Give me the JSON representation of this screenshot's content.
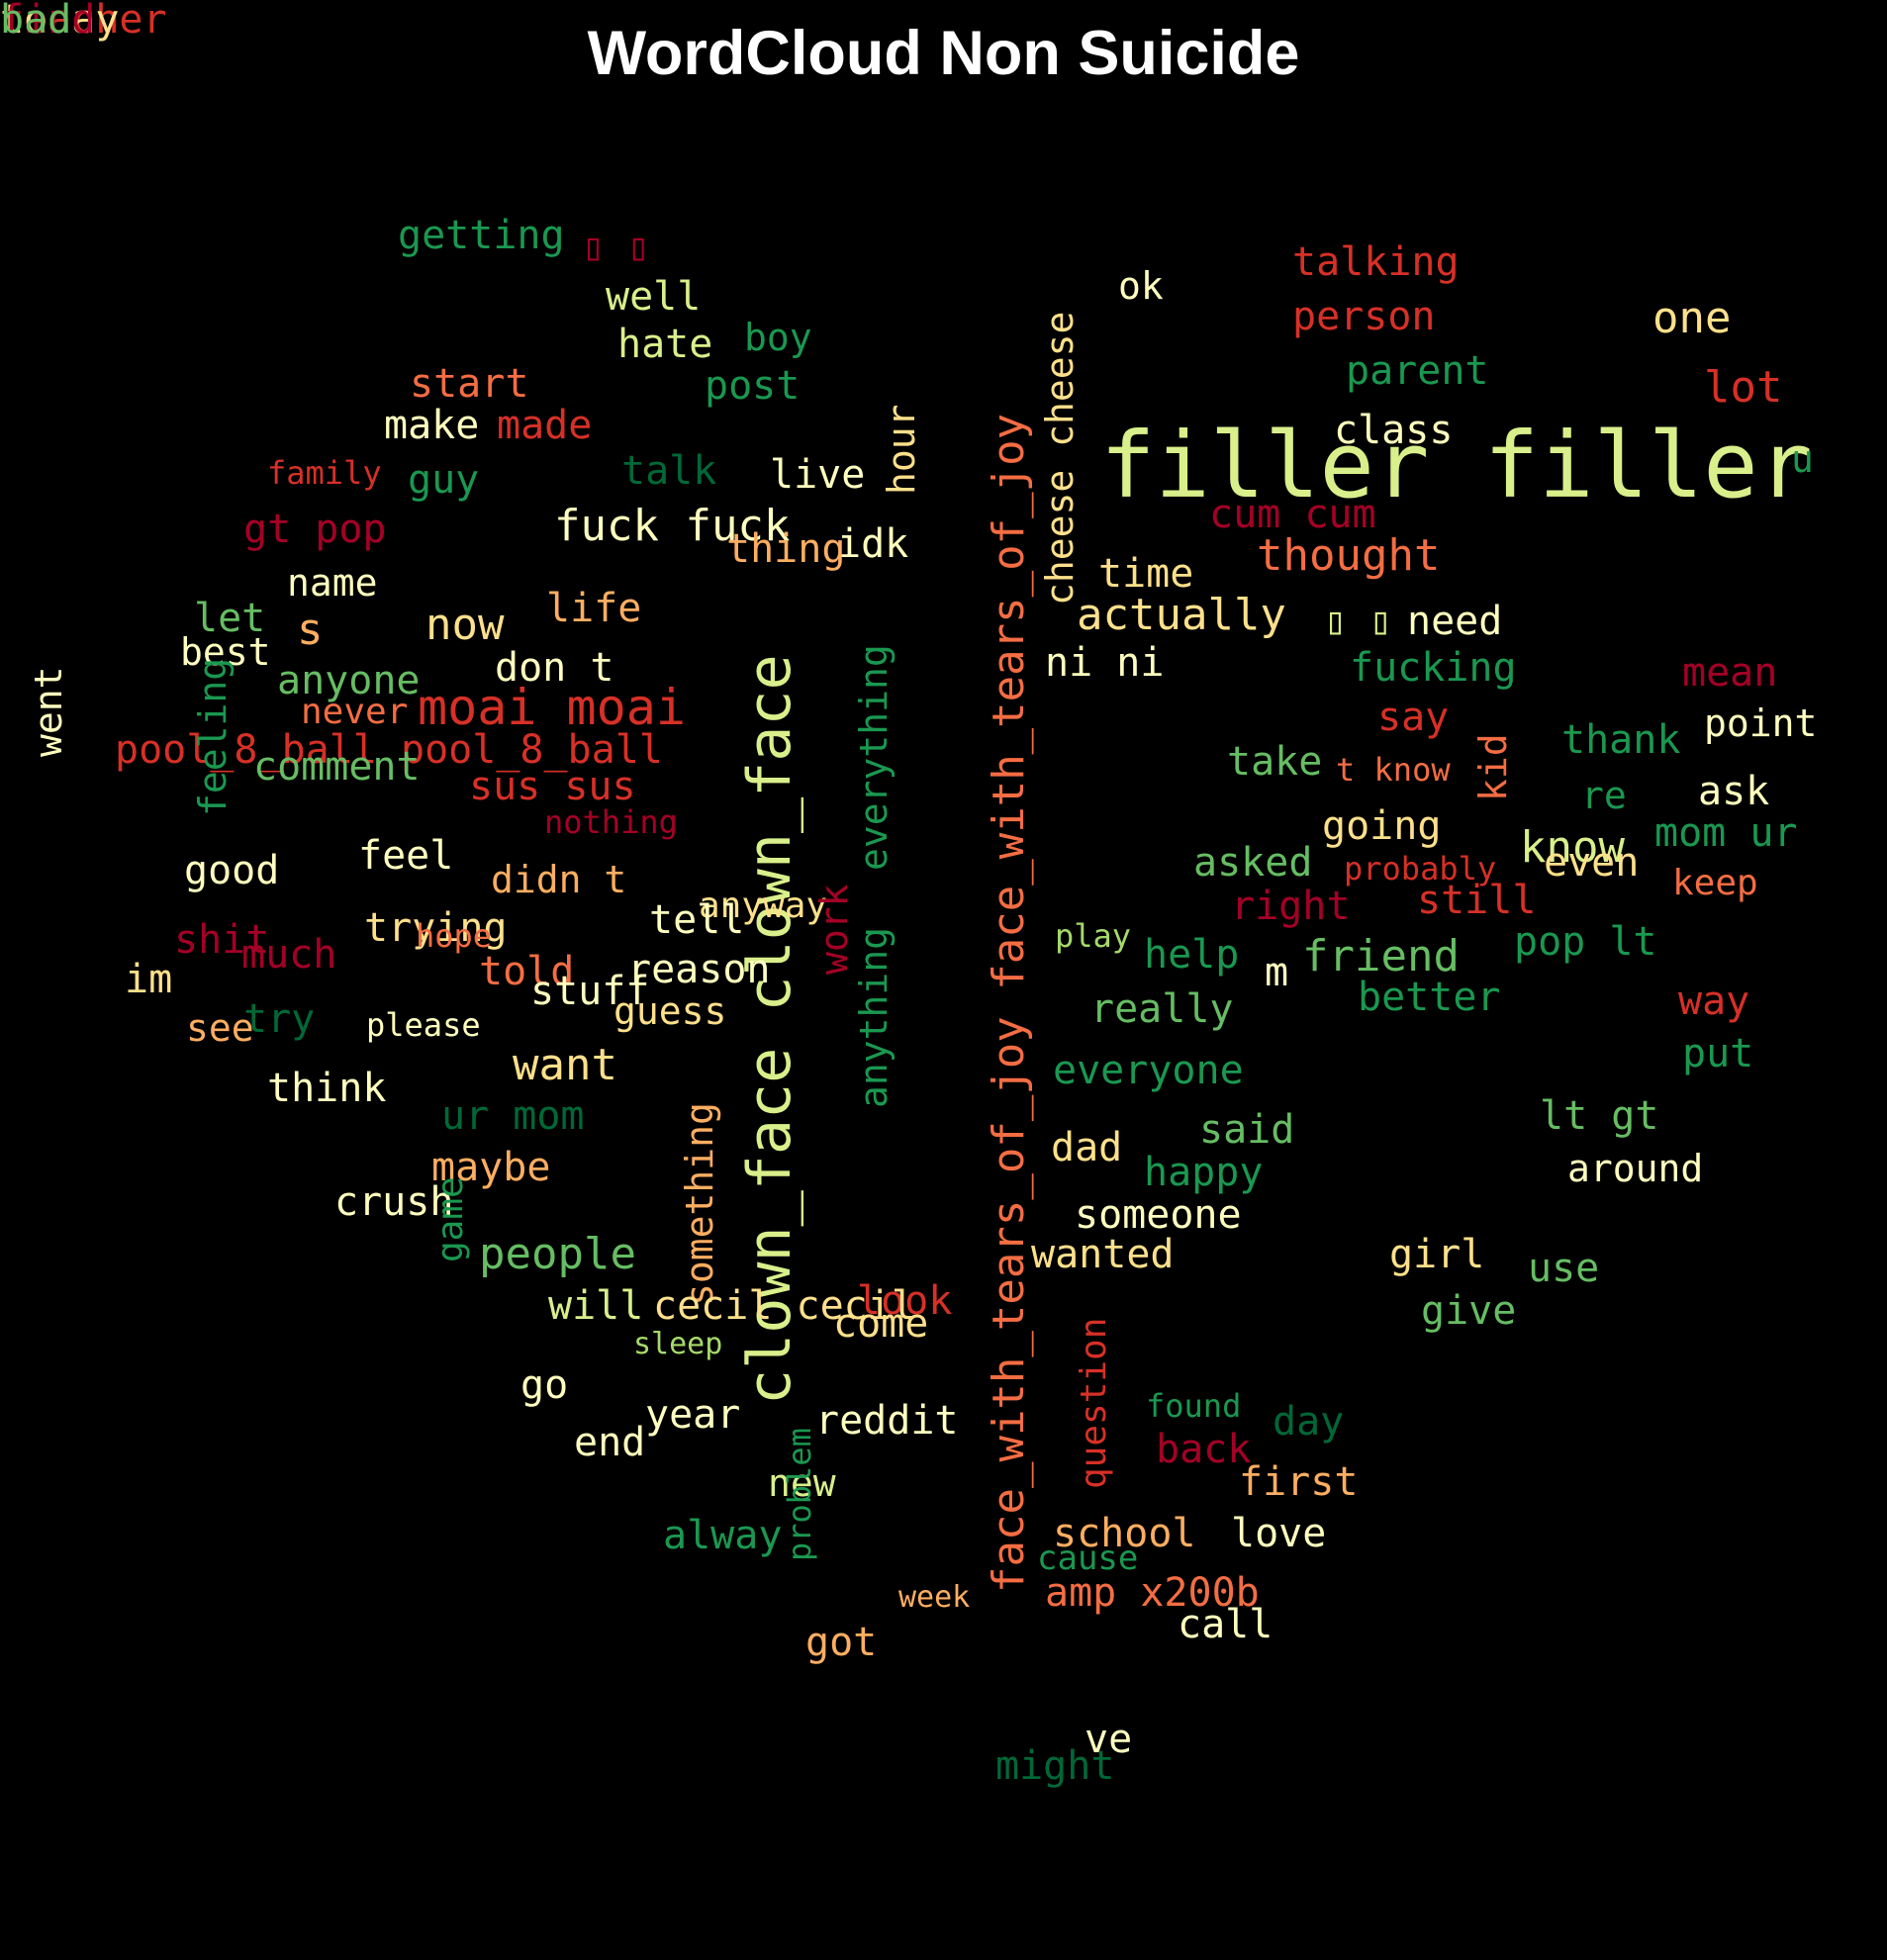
{
  "title": "WordCloud Non Suicide",
  "colors": {
    "background": "#000000",
    "title": "#ffffff",
    "palette": [
      "#a50026",
      "#d73027",
      "#f46d43",
      "#fdae61",
      "#fee08b",
      "#ffffbf",
      "#d9ef8b",
      "#a6d96a",
      "#66bd63",
      "#1a9850",
      "#006837"
    ]
  },
  "words": [
    {
      "t": "filler filler",
      "c": "#d9ef8b",
      "s": 92
    },
    {
      "t": "clown_face clown_face",
      "c": "#d9ef8b",
      "s": 60,
      "v": true
    },
    {
      "t": "face_with_tears_of_joy face_with_tears_of_joy",
      "c": "#f46d43",
      "s": 44,
      "v": true
    },
    {
      "t": "cheese cheese",
      "c": "#fee08b",
      "s": 38,
      "v": true
    },
    {
      "t": "moai moai",
      "c": "#d73027",
      "s": 50
    },
    {
      "t": "pool_8_ball pool_8_ball",
      "c": "#d73027",
      "s": 40
    },
    {
      "t": "everything",
      "c": "#1a9850",
      "s": 38,
      "v": true
    },
    {
      "t": "anything",
      "c": "#1a9850",
      "s": 38,
      "v": true
    },
    {
      "t": "something",
      "c": "#fdae61",
      "s": 38,
      "v": true
    },
    {
      "t": "went",
      "c": "#ffffbf",
      "s": 38,
      "v": true
    },
    {
      "t": "fuck fuck",
      "c": "#ffffbf",
      "s": 44
    },
    {
      "t": "talking",
      "c": "#d73027",
      "s": 40
    },
    {
      "t": "person",
      "c": "#d73027",
      "s": 40
    },
    {
      "t": "one",
      "c": "#fee08b",
      "s": 44
    },
    {
      "t": "parent",
      "c": "#1a9850",
      "s": 40
    },
    {
      "t": "lot",
      "c": "#d73027",
      "s": 44
    },
    {
      "t": "class",
      "c": "#ffffbf",
      "s": 40
    },
    {
      "t": "u",
      "c": "#1a9850",
      "s": 38
    },
    {
      "t": "cum cum",
      "c": "#a50026",
      "s": 40
    },
    {
      "t": "thought",
      "c": "#f46d43",
      "s": 44
    },
    {
      "t": "time",
      "c": "#fee08b",
      "s": 40
    },
    {
      "t": "actually",
      "c": "#fee08b",
      "s": 44
    },
    {
      "t": "need",
      "c": "#ffffbf",
      "s": 40
    },
    {
      "t": "fucking",
      "c": "#1a9850",
      "s": 40
    },
    {
      "t": "mean",
      "c": "#a50026",
      "s": 40
    },
    {
      "t": "ni ni",
      "c": "#ffffbf",
      "s": 40
    },
    {
      "t": "say",
      "c": "#d73027",
      "s": 40
    },
    {
      "t": "thank",
      "c": "#1a9850",
      "s": 40
    },
    {
      "t": "point",
      "c": "#ffffbf",
      "s": 38
    },
    {
      "t": "take",
      "c": "#66bd63",
      "s": 40
    },
    {
      "t": "t know",
      "c": "#f46d43",
      "s": 32
    },
    {
      "t": "kid",
      "c": "#f46d43",
      "s": 38,
      "v": true
    },
    {
      "t": "re",
      "c": "#1a9850",
      "s": 38
    },
    {
      "t": "ask",
      "c": "#ffffbf",
      "s": 40
    },
    {
      "t": "going",
      "c": "#fee08b",
      "s": 40
    },
    {
      "t": "know",
      "c": "#d9ef8b",
      "s": 44
    },
    {
      "t": "mom ur",
      "c": "#1a9850",
      "s": 40
    },
    {
      "t": "asked",
      "c": "#66bd63",
      "s": 40
    },
    {
      "t": "probably",
      "c": "#d73027",
      "s": 32
    },
    {
      "t": "even",
      "c": "#fee08b",
      "s": 40
    },
    {
      "t": "keep",
      "c": "#f46d43",
      "s": 36
    },
    {
      "t": "right",
      "c": "#a50026",
      "s": 40
    },
    {
      "t": "still",
      "c": "#d73027",
      "s": 40
    },
    {
      "t": "play",
      "c": "#a6d96a",
      "s": 32
    },
    {
      "t": "help",
      "c": "#1a9850",
      "s": 40
    },
    {
      "t": "m",
      "c": "#ffffbf",
      "s": 40
    },
    {
      "t": "friend",
      "c": "#66bd63",
      "s": 44
    },
    {
      "t": "pop lt",
      "c": "#1a9850",
      "s": 40
    },
    {
      "t": "better",
      "c": "#1a9850",
      "s": 40
    },
    {
      "t": "way",
      "c": "#d73027",
      "s": 40
    },
    {
      "t": "really",
      "c": "#66bd63",
      "s": 40
    },
    {
      "t": "put",
      "c": "#1a9850",
      "s": 40
    },
    {
      "t": "everyone",
      "c": "#1a9850",
      "s": 40
    },
    {
      "t": "lt gt",
      "c": "#66bd63",
      "s": 40
    },
    {
      "t": "said",
      "c": "#66bd63",
      "s": 40
    },
    {
      "t": "dad",
      "c": "#fee08b",
      "s": 40
    },
    {
      "t": "happy",
      "c": "#1a9850",
      "s": 40
    },
    {
      "t": "around",
      "c": "#ffffbf",
      "s": 38
    },
    {
      "t": "someone",
      "c": "#ffffbf",
      "s": 40
    },
    {
      "t": "wanted",
      "c": "#fee08b",
      "s": 40
    },
    {
      "t": "girl",
      "c": "#fee08b",
      "s": 40
    },
    {
      "t": "use",
      "c": "#66bd63",
      "s": 40
    },
    {
      "t": "question",
      "c": "#d73027",
      "s": 36,
      "v": true
    },
    {
      "t": "give",
      "c": "#66bd63",
      "s": 40
    },
    {
      "t": "found",
      "c": "#1a9850",
      "s": 32
    },
    {
      "t": "day",
      "c": "#006837",
      "s": 40
    },
    {
      "t": "back",
      "c": "#a50026",
      "s": 40
    },
    {
      "t": "first",
      "c": "#fdae61",
      "s": 40
    },
    {
      "t": "school",
      "c": "#fdae61",
      "s": 40
    },
    {
      "t": "love",
      "c": "#ffffbf",
      "s": 40
    },
    {
      "t": "cause",
      "c": "#1a9850",
      "s": 34
    },
    {
      "t": "amp x200b",
      "c": "#f46d43",
      "s": 40
    },
    {
      "t": "call",
      "c": "#ffffbf",
      "s": 40
    },
    {
      "t": "ve",
      "c": "#ffffbf",
      "s": 40
    },
    {
      "t": "might",
      "c": "#006837",
      "s": 40
    },
    {
      "t": "ok",
      "c": "#ffffbf",
      "s": 38
    },
    {
      "t": "getting",
      "c": "#1a9850",
      "s": 40
    },
    {
      "t": "▯ ▯",
      "c": "#a50026",
      "s": 38
    },
    {
      "t": "▯ ▯",
      "c": "#d9ef8b",
      "s": 38
    },
    {
      "t": "well",
      "c": "#d9ef8b",
      "s": 40
    },
    {
      "t": "hate",
      "c": "#d9ef8b",
      "s": 40
    },
    {
      "t": "boy",
      "c": "#1a9850",
      "s": 38
    },
    {
      "t": "start",
      "c": "#f46d43",
      "s": 40
    },
    {
      "t": "post",
      "c": "#1a9850",
      "s": 40
    },
    {
      "t": "made",
      "c": "#d73027",
      "s": 40
    },
    {
      "t": "make",
      "c": "#ffffbf",
      "s": 40
    },
    {
      "t": "hour",
      "c": "#fee08b",
      "s": 38,
      "v": true
    },
    {
      "t": "family",
      "c": "#d73027",
      "s": 32
    },
    {
      "t": "guy",
      "c": "#1a9850",
      "s": 40
    },
    {
      "t": "talk",
      "c": "#006837",
      "s": 40
    },
    {
      "t": "live",
      "c": "#ffffbf",
      "s": 40
    },
    {
      "t": "gt pop",
      "c": "#a50026",
      "s": 40
    },
    {
      "t": "idk",
      "c": "#ffffbf",
      "s": 40
    },
    {
      "t": "name",
      "c": "#ffffbf",
      "s": 38
    },
    {
      "t": "thing",
      "c": "#fdae61",
      "s": 40
    },
    {
      "t": "let",
      "c": "#66bd63",
      "s": 40
    },
    {
      "t": "life",
      "c": "#fdae61",
      "s": 40
    },
    {
      "t": "s",
      "c": "#fdae61",
      "s": 44
    },
    {
      "t": "now",
      "c": "#fee08b",
      "s": 44
    },
    {
      "t": "best",
      "c": "#ffffbf",
      "s": 38
    },
    {
      "t": "anyone",
      "c": "#66bd63",
      "s": 40
    },
    {
      "t": "don t",
      "c": "#ffffbf",
      "s": 40
    },
    {
      "t": "never",
      "c": "#f46d43",
      "s": 36
    },
    {
      "t": "comment",
      "c": "#66bd63",
      "s": 40
    },
    {
      "t": "sus sus",
      "c": "#d73027",
      "s": 40
    },
    {
      "t": "anyway",
      "c": "#fee08b",
      "s": 36
    },
    {
      "t": "work",
      "c": "#a50026",
      "s": 38,
      "v": true
    },
    {
      "t": "feeling",
      "c": "#1a9850",
      "s": 38,
      "v": true
    },
    {
      "t": "nothing",
      "c": "#a50026",
      "s": 32
    },
    {
      "t": "good",
      "c": "#ffffbf",
      "s": 40
    },
    {
      "t": "feel",
      "c": "#ffffbf",
      "s": 40
    },
    {
      "t": "didn t",
      "c": "#fdae61",
      "s": 38
    },
    {
      "t": "trying",
      "c": "#fee08b",
      "s": 40
    },
    {
      "t": "shit",
      "c": "#a50026",
      "s": 40
    },
    {
      "t": "tell",
      "c": "#ffffbf",
      "s": 40
    },
    {
      "t": "hope",
      "c": "#f46d43",
      "s": 32
    },
    {
      "t": "im",
      "c": "#fee08b",
      "s": 40
    },
    {
      "t": "much",
      "c": "#a50026",
      "s": 40
    },
    {
      "t": "try",
      "c": "#006837",
      "s": 40
    },
    {
      "t": "told",
      "c": "#f46d43",
      "s": 40
    },
    {
      "t": "reason",
      "c": "#ffffbf",
      "s": 40
    },
    {
      "t": "stuff",
      "c": "#ffffbf",
      "s": 40
    },
    {
      "t": "guess",
      "c": "#fee08b",
      "s": 38
    },
    {
      "t": "see",
      "c": "#fdae61",
      "s": 38
    },
    {
      "t": "please",
      "c": "#ffffbf",
      "s": 32
    },
    {
      "t": "want",
      "c": "#fee08b",
      "s": 44
    },
    {
      "t": "think",
      "c": "#ffffbf",
      "s": 40
    },
    {
      "t": "ur mom",
      "c": "#006837",
      "s": 40
    },
    {
      "t": "maybe",
      "c": "#fdae61",
      "s": 40
    },
    {
      "t": "look",
      "c": "#d73027",
      "s": 40
    },
    {
      "t": "crush",
      "c": "#ffffbf",
      "s": 40
    },
    {
      "t": "people",
      "c": "#66bd63",
      "s": 44
    },
    {
      "t": "game",
      "c": "#1a9850",
      "s": 36,
      "v": true
    },
    {
      "t": "come",
      "c": "#fee08b",
      "s": 40
    },
    {
      "t": "will",
      "c": "#d9ef8b",
      "s": 40
    },
    {
      "t": "cecil cecil",
      "c": "#fee08b",
      "s": 40
    },
    {
      "t": "sleep",
      "c": "#a6d96a",
      "s": 30
    },
    {
      "t": "go",
      "c": "#ffffbf",
      "s": 40
    },
    {
      "t": "reddit",
      "c": "#ffffbf",
      "s": 40
    },
    {
      "t": "end",
      "c": "#ffffbf",
      "s": 40
    },
    {
      "t": "year",
      "c": "#ffffbf",
      "s": 40
    },
    {
      "t": "week",
      "c": "#fdae61",
      "s": 30
    },
    {
      "t": "new",
      "c": "#d9ef8b",
      "s": 38
    },
    {
      "t": "alway",
      "c": "#1a9850",
      "s": 40
    },
    {
      "t": "problem",
      "c": "#1a9850",
      "s": 32,
      "v": true
    },
    {
      "t": "got",
      "c": "#fdae61",
      "s": 40
    },
    {
      "t": "teacher",
      "c": "#d73027",
      "s": 40
    },
    {
      "t": "today",
      "c": "#fee08b",
      "s": 40
    },
    {
      "t": "find",
      "c": "#a50026",
      "s": 40
    },
    {
      "t": "bad",
      "c": "#66bd63",
      "s": 40
    }
  ]
}
